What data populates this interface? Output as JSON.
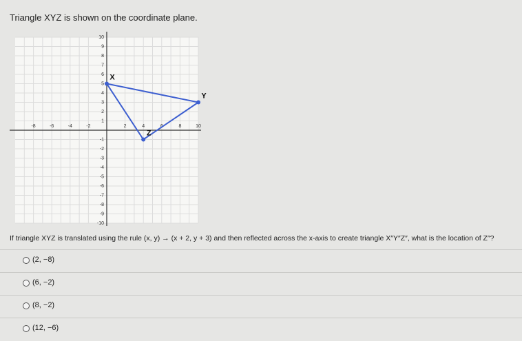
{
  "prompt": "Triangle XYZ is shown on the coordinate plane.",
  "graph": {
    "type": "scatter",
    "xlim": [
      -10,
      10
    ],
    "ylim": [
      -10,
      10
    ],
    "xticks": [
      -8,
      -6,
      -4,
      -2,
      2,
      4,
      6,
      8,
      10
    ],
    "yticks": [
      -10,
      -9,
      -8,
      -7,
      -6,
      -5,
      -4,
      -3,
      -2,
      -1,
      1,
      2,
      3,
      4,
      5,
      6,
      7,
      8,
      9,
      10
    ],
    "color": "#3d5fd0",
    "points": [
      {
        "label": "X",
        "x": 0,
        "y": 5
      },
      {
        "label": "Y",
        "x": 10,
        "y": 3
      },
      {
        "label": "Z",
        "x": 4,
        "y": -1
      }
    ]
  },
  "question": "If triangle XYZ is translated using the rule (x, y) → (x + 2, y + 3) and then reflected across the x-axis to create triangle X″Y″Z″, what is the location of Z″?",
  "options": [
    "(2, −8)",
    "(6, −2)",
    "(8, −2)",
    "(12, −6)"
  ]
}
